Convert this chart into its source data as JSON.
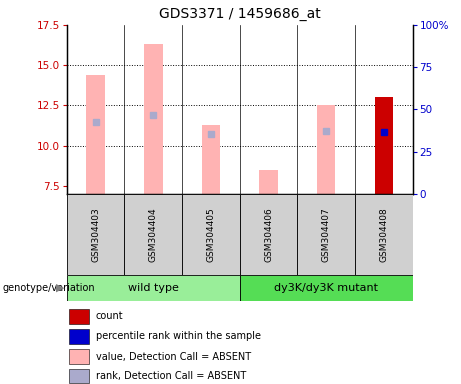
{
  "title": "GDS3371 / 1459686_at",
  "samples": [
    "GSM304403",
    "GSM304404",
    "GSM304405",
    "GSM304406",
    "GSM304407",
    "GSM304408"
  ],
  "ylim_left": [
    7.0,
    17.5
  ],
  "ylim_right": [
    0,
    100
  ],
  "yticks_left": [
    7.5,
    10.0,
    12.5,
    15.0,
    17.5
  ],
  "yticks_right": [
    0,
    25,
    50,
    75,
    100
  ],
  "left_color": "#cc0000",
  "right_color": "#0000cc",
  "bar_absent_color": "#ffb3b3",
  "rank_absent_color": "#aaaacc",
  "bar_present_color": "#cc0000",
  "rank_present_color": "#0000cc",
  "group_colors_wt": "#99ee99",
  "group_colors_mut": "#55dd55",
  "values_absent": [
    14.4,
    16.3,
    11.3,
    8.5,
    12.5,
    null
  ],
  "ranks_absent": [
    11.5,
    11.9,
    10.7,
    null,
    10.9,
    null
  ],
  "values_present": [
    null,
    null,
    null,
    null,
    null,
    13.0
  ],
  "ranks_present": [
    null,
    null,
    null,
    null,
    null,
    10.85
  ],
  "dotgrid_lines": [
    10.0,
    12.5,
    15.0
  ],
  "legend_items": [
    {
      "color": "#cc0000",
      "label": "count"
    },
    {
      "color": "#0000cc",
      "label": "percentile rank within the sample"
    },
    {
      "color": "#ffb3b3",
      "label": "value, Detection Call = ABSENT"
    },
    {
      "color": "#aaaacc",
      "label": "rank, Detection Call = ABSENT"
    }
  ],
  "baseline": 7.0,
  "bar_width": 0.32
}
